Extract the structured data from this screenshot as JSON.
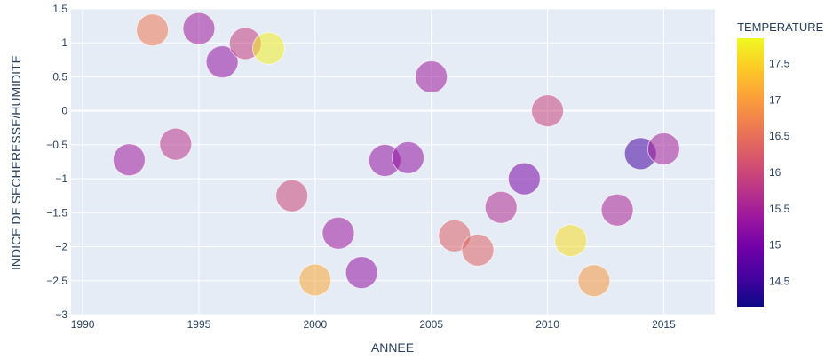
{
  "chart_data": {
    "type": "scatter",
    "title": "",
    "xlabel": "ANNEE",
    "ylabel": "INDICE DE SECHERESSE/HUMIDITE",
    "xlim": [
      1989.5,
      2017.2
    ],
    "ylim": [
      -3,
      1.5
    ],
    "x_ticks": [
      "1990",
      "1995",
      "2000",
      "2005",
      "2010",
      "2015"
    ],
    "x_tick_values": [
      1990,
      1995,
      2000,
      2005,
      2010,
      2015
    ],
    "y_ticks": [
      "1.5",
      "1",
      "0.5",
      "0",
      "−0.5",
      "−1",
      "−1.5",
      "−2",
      "−2.5",
      "−3"
    ],
    "y_tick_values": [
      1.5,
      1,
      0.5,
      0,
      -0.5,
      -1,
      -1.5,
      -2,
      -2.5,
      -3
    ],
    "grid": true,
    "colorbar": {
      "title": "TEMPERATURE",
      "min": 14.15,
      "max": 17.85,
      "ticks": [
        "17.5",
        "17",
        "16.5",
        "16",
        "15.5",
        "15",
        "14.5"
      ],
      "tick_values": [
        17.5,
        17,
        16.5,
        16,
        15.5,
        15,
        14.5
      ],
      "colorscale": [
        "#0d0887",
        "#46039f",
        "#7201a8",
        "#9c179e",
        "#bd3786",
        "#d8576b",
        "#ed7953",
        "#fb9f3a",
        "#fdca26",
        "#f0f921"
      ]
    },
    "points": [
      {
        "x": 1992,
        "y": -0.72,
        "temperature": 15.45
      },
      {
        "x": 1993,
        "y": 1.19,
        "temperature": 16.6
      },
      {
        "x": 1994,
        "y": -0.49,
        "temperature": 15.75
      },
      {
        "x": 1995,
        "y": 1.21,
        "temperature": 15.45
      },
      {
        "x": 1996,
        "y": 0.72,
        "temperature": 15.3
      },
      {
        "x": 1997,
        "y": 0.99,
        "temperature": 15.9
      },
      {
        "x": 1998,
        "y": 0.92,
        "temperature": 17.75
      },
      {
        "x": 1999,
        "y": -1.25,
        "temperature": 16.0
      },
      {
        "x": 2000,
        "y": -2.49,
        "temperature": 17.1
      },
      {
        "x": 2001,
        "y": -1.8,
        "temperature": 15.4
      },
      {
        "x": 2002,
        "y": -2.38,
        "temperature": 15.3
      },
      {
        "x": 2003,
        "y": -0.73,
        "temperature": 15.3
      },
      {
        "x": 2004,
        "y": -0.69,
        "temperature": 15.3
      },
      {
        "x": 2005,
        "y": 0.5,
        "temperature": 15.45
      },
      {
        "x": 2006,
        "y": -1.84,
        "temperature": 16.3
      },
      {
        "x": 2007,
        "y": -2.05,
        "temperature": 16.35
      },
      {
        "x": 2008,
        "y": -1.42,
        "temperature": 15.65
      },
      {
        "x": 2009,
        "y": -1.0,
        "temperature": 15.05
      },
      {
        "x": 2010,
        "y": 0.0,
        "temperature": 15.95
      },
      {
        "x": 2011,
        "y": -1.91,
        "temperature": 17.6
      },
      {
        "x": 2012,
        "y": -2.5,
        "temperature": 16.95
      },
      {
        "x": 2013,
        "y": -1.46,
        "temperature": 15.55
      },
      {
        "x": 2014,
        "y": -0.63,
        "temperature": 14.55
      },
      {
        "x": 2015,
        "y": -0.56,
        "temperature": 15.5
      }
    ]
  }
}
